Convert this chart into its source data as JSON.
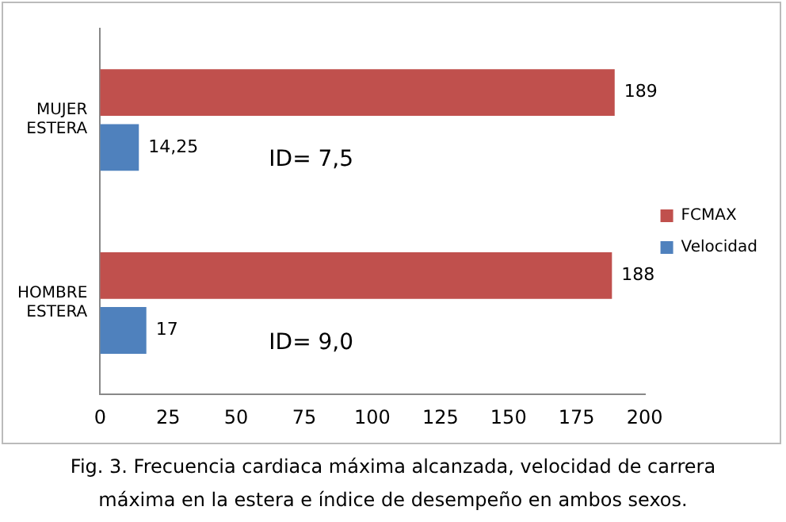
{
  "chart_data": {
    "type": "bar",
    "orientation": "horizontal",
    "categories": [
      "MUJER ESTERA",
      "HOMBRE ESTERA"
    ],
    "series": [
      {
        "name": "FCMAX",
        "color": "#c0504d",
        "values": [
          189,
          188
        ],
        "value_labels": [
          "189",
          "188"
        ]
      },
      {
        "name": "Velocidad",
        "color": "#4f81bd",
        "values": [
          14.25,
          17
        ],
        "value_labels": [
          "14,25",
          "17"
        ]
      }
    ],
    "xlim": [
      0,
      200
    ],
    "xticks": [
      0,
      25,
      50,
      75,
      100,
      125,
      150,
      175,
      200
    ],
    "grid": false,
    "legend": "right",
    "annotations": [
      {
        "text": "ID= 7,5",
        "x": 62,
        "y": "MUJER ESTERA"
      },
      {
        "text": "ID= 9,0",
        "x": 62,
        "y": "HOMBRE ESTERA"
      },
      "Fig. 3. Frecuencia cardiaca máxima alcanzada, velocidad de carrera máxima en la estera e índice de desempeño en ambos sexos."
    ]
  }
}
